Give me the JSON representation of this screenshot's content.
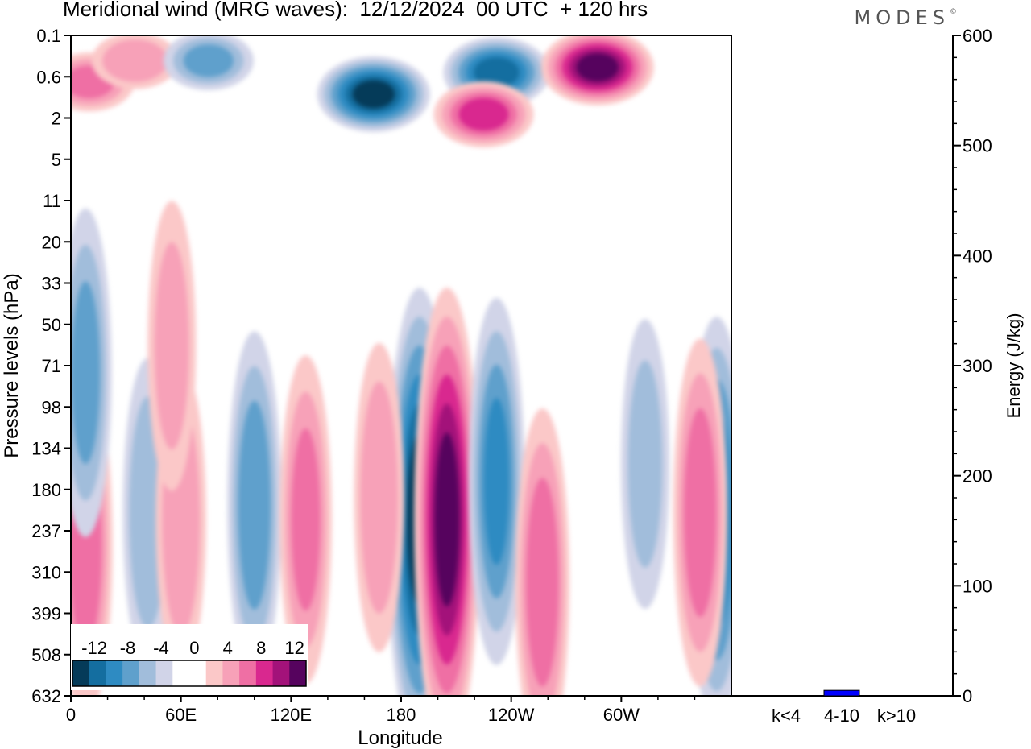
{
  "header": {
    "title": "Meridional wind (MRG waves):  12/12/2024  00 UTC  + 120 hrs",
    "brand": "MODES"
  },
  "chart_data": [
    {
      "type": "heatmap",
      "title": "Meridional wind (MRG waves):  12/12/2024  00 UTC  + 120 hrs",
      "xlabel": "Longitude",
      "ylabel": "Pressure levels (hPa)",
      "x_ticks": [
        {
          "lon": 0,
          "label": "0"
        },
        {
          "lon": 60,
          "label": "60E"
        },
        {
          "lon": 120,
          "label": "120E"
        },
        {
          "lon": 180,
          "label": "180"
        },
        {
          "lon": 240,
          "label": "120W"
        },
        {
          "lon": 300,
          "label": "60W"
        }
      ],
      "xlim": [
        0,
        360
      ],
      "y_levels": [
        "0.1",
        "0.6",
        "2",
        "5",
        "11",
        "20",
        "33",
        "50",
        "71",
        "98",
        "134",
        "180",
        "237",
        "310",
        "399",
        "508",
        "632"
      ],
      "colorbar": {
        "labels": [
          "-12",
          "-8",
          "-4",
          "0",
          "4",
          "8",
          "12"
        ],
        "colors": [
          "#053b59",
          "#146ea0",
          "#2e8bc2",
          "#5fa0cc",
          "#a1bddb",
          "#d1d4e8",
          "#ffffff",
          "#ffffff",
          "#fbc8c8",
          "#f7a1b8",
          "#ef6fa4",
          "#d9288f",
          "#a3127a",
          "#56035e"
        ]
      },
      "features": [
        {
          "lon": 190,
          "p": 220,
          "value": -14
        },
        {
          "lon": 205,
          "p": 220,
          "value": 14
        },
        {
          "lon": 232,
          "p": 170,
          "value": -9
        },
        {
          "lon": 257,
          "p": 330,
          "value": 8
        },
        {
          "lon": 100,
          "p": 200,
          "value": -8
        },
        {
          "lon": 128,
          "p": 220,
          "value": 7
        },
        {
          "lon": 168,
          "p": 190,
          "value": 6
        },
        {
          "lon": 42,
          "p": 210,
          "value": -6
        },
        {
          "lon": 60,
          "p": 220,
          "value": 6
        },
        {
          "lon": 8,
          "p": 260,
          "value": 8
        },
        {
          "lon": 352,
          "p": 220,
          "value": -11
        },
        {
          "lon": 343,
          "p": 210,
          "value": 8
        },
        {
          "lon": 313,
          "p": 150,
          "value": -5
        },
        {
          "lon": 165,
          "p": 1.0,
          "value": -14
        },
        {
          "lon": 232,
          "p": 0.5,
          "value": -12
        },
        {
          "lon": 287,
          "p": 0.4,
          "value": 14
        },
        {
          "lon": 225,
          "p": 1.8,
          "value": 10
        },
        {
          "lon": 10,
          "p": 0.7,
          "value": 7
        },
        {
          "lon": 35,
          "p": 0.3,
          "value": 6
        },
        {
          "lon": 75,
          "p": 0.3,
          "value": -7
        },
        {
          "lon": 8,
          "p": 75,
          "value": -7
        },
        {
          "lon": 55,
          "p": 60,
          "value": 5
        }
      ]
    },
    {
      "type": "bar",
      "categories": [
        "k<4",
        "4-10",
        "k>10"
      ],
      "values": [
        0,
        5,
        0
      ],
      "ylabel": "Energy (J/kg)",
      "ylim": [
        0,
        600
      ],
      "y_ticks": [
        "0",
        "100",
        "200",
        "300",
        "400",
        "500",
        "600"
      ],
      "bar_color": "#0000ff"
    }
  ]
}
